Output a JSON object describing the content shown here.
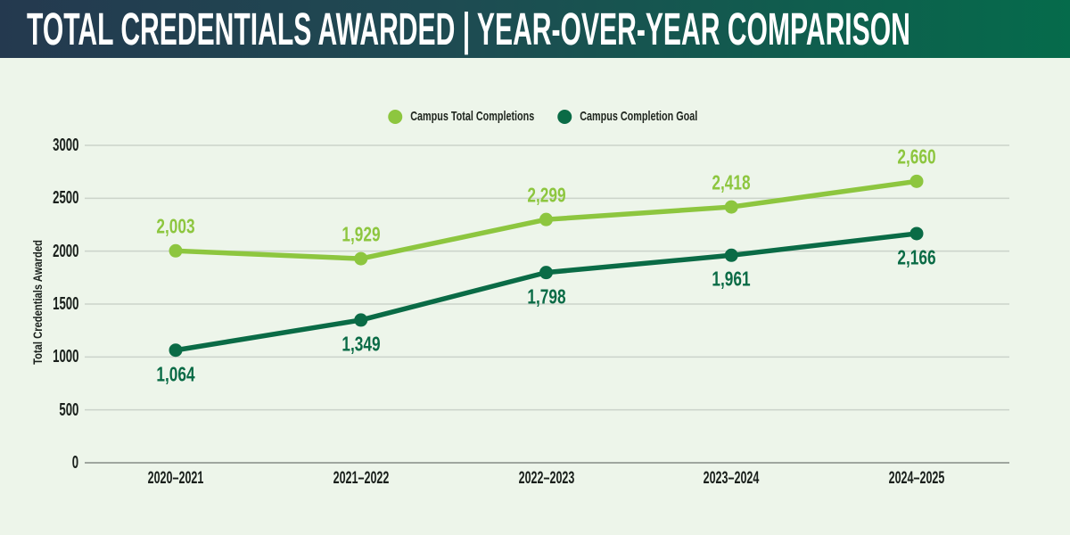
{
  "header": {
    "title": "TOTAL CREDENTIALS AWARDED | YEAR-OVER-YEAR COMPARISON"
  },
  "chart_data": {
    "type": "line",
    "categories": [
      "2020–2021",
      "2021–2022",
      "2022–2023",
      "2023–2024",
      "2024–2025"
    ],
    "series": [
      {
        "name": "Campus Total Completions",
        "color": "#8DC63F",
        "values": [
          2003,
          1929,
          2299,
          2418,
          2660
        ],
        "data_label_position": "above"
      },
      {
        "name": "Campus Completion Goal",
        "color": "#0A6B46",
        "values": [
          1064,
          1349,
          1798,
          1961,
          2166
        ],
        "data_label_position": "below"
      }
    ],
    "ylabel": "Total Credentials Awarded",
    "xlabel": "",
    "ylim": [
      0,
      3000
    ],
    "yticks": [
      0,
      500,
      1000,
      1500,
      2000,
      2500,
      3000
    ],
    "grid": "horizontal",
    "legend_position": "top-center",
    "data_labels_format": "thousands-comma",
    "marker": "circle"
  },
  "colors": {
    "page_background": "#EDF5EA",
    "header_left": "#24394F",
    "header_mid": "#1E4B52",
    "header_right": "#056B4B",
    "header_text": "#FFFFFF",
    "gridline": "#CBD3CA",
    "axis_line": "#9FA69F",
    "tick_text": "#1A201C",
    "legend_text": "#20261F",
    "series_light_green": "#8DC63F",
    "series_dark_green": "#0A6B46"
  }
}
